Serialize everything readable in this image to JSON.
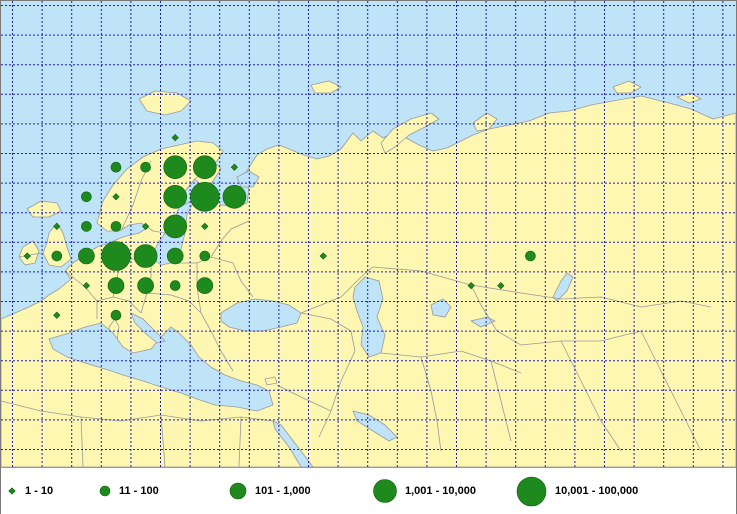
{
  "colors": {
    "water": "#bfe3f7",
    "land": "#fdf7b2",
    "border": "#9a9a9a",
    "grid": "#1f1fb4",
    "symbol": "#1e8a1e",
    "symbol_stroke": "#0e5f0e"
  },
  "legend": [
    {
      "label": "1 - 10",
      "class": 1
    },
    {
      "label": "11 - 100",
      "class": 2
    },
    {
      "label": "101 - 1,000",
      "class": 3
    },
    {
      "label": "1,001 - 10,000",
      "class": 4
    },
    {
      "label": "10,001 - 100,000",
      "class": 5
    }
  ],
  "observations": [
    {
      "lon": 45,
      "lat": 74,
      "class": 1
    },
    {
      "lon": 25,
      "lat": 70,
      "class": 2
    },
    {
      "lon": 35,
      "lat": 70,
      "class": 2
    },
    {
      "lon": 45,
      "lat": 70,
      "class": 4
    },
    {
      "lon": 55,
      "lat": 70,
      "class": 4
    },
    {
      "lon": 65,
      "lat": 70,
      "class": 1
    },
    {
      "lon": 15,
      "lat": 66,
      "class": 2
    },
    {
      "lon": 25,
      "lat": 66,
      "class": 1
    },
    {
      "lon": 45,
      "lat": 66,
      "class": 4
    },
    {
      "lon": 55,
      "lat": 66,
      "class": 5
    },
    {
      "lon": 65,
      "lat": 66,
      "class": 4
    },
    {
      "lon": 5,
      "lat": 62,
      "class": 1
    },
    {
      "lon": 15,
      "lat": 62,
      "class": 2
    },
    {
      "lon": 25,
      "lat": 62,
      "class": 2
    },
    {
      "lon": 35,
      "lat": 62,
      "class": 1
    },
    {
      "lon": 45,
      "lat": 62,
      "class": 4
    },
    {
      "lon": 55,
      "lat": 62,
      "class": 1
    },
    {
      "lon": -5,
      "lat": 58,
      "class": 1
    },
    {
      "lon": 5,
      "lat": 58,
      "class": 2
    },
    {
      "lon": 15,
      "lat": 58,
      "class": 3
    },
    {
      "lon": 25,
      "lat": 58,
      "class": 5
    },
    {
      "lon": 35,
      "lat": 58,
      "class": 4
    },
    {
      "lon": 45,
      "lat": 58,
      "class": 3
    },
    {
      "lon": 55,
      "lat": 58,
      "class": 2
    },
    {
      "lon": 95,
      "lat": 58,
      "class": 1
    },
    {
      "lon": 165,
      "lat": 58,
      "class": 2
    },
    {
      "lon": 15,
      "lat": 54,
      "class": 1
    },
    {
      "lon": 25,
      "lat": 54,
      "class": 3
    },
    {
      "lon": 35,
      "lat": 54,
      "class": 3
    },
    {
      "lon": 45,
      "lat": 54,
      "class": 2
    },
    {
      "lon": 55,
      "lat": 54,
      "class": 3
    },
    {
      "lon": 145,
      "lat": 54,
      "class": 1
    },
    {
      "lon": 155,
      "lat": 54,
      "class": 1
    },
    {
      "lon": 5,
      "lat": 50,
      "class": 1
    },
    {
      "lon": 25,
      "lat": 50,
      "class": 2
    }
  ]
}
